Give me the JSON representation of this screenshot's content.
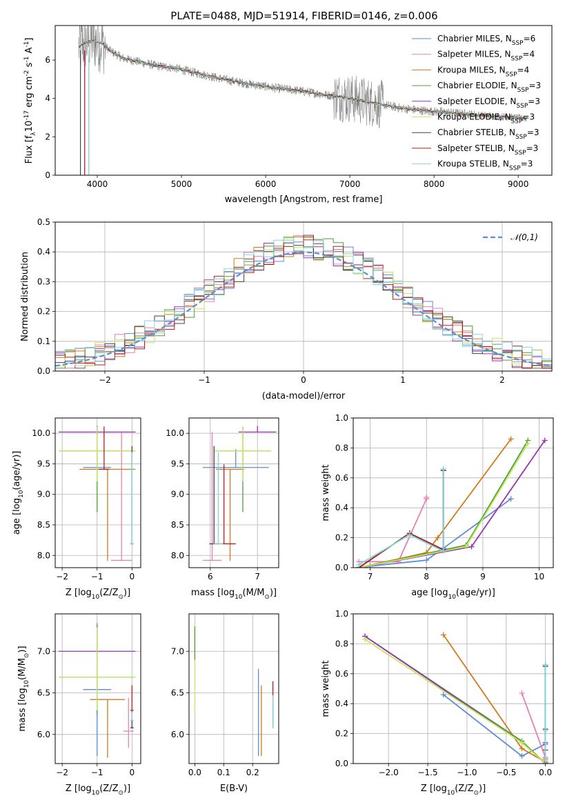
{
  "chart_data": [
    {
      "id": "spectrum",
      "type": "line",
      "title": "PLATE=0488, MJD=51914, FIBERID=0146, z=0.006",
      "xlabel": "wavelength [Angstrom, rest frame]",
      "ylabel": "Flux [f_λ10^-17 erg cm^-2 s^-1 A^-1]",
      "xlim": [
        3500,
        9400
      ],
      "ylim": [
        0,
        7.8
      ],
      "xticks": [
        4000,
        5000,
        6000,
        7000,
        8000,
        9000
      ],
      "yticks": [
        0,
        2,
        4,
        6
      ],
      "legend_position": "top-right",
      "legend": [
        {
          "label": "Chabrier MILES, N_SSP=6",
          "color": "#5b8bd9"
        },
        {
          "label": "Salpeter MILES, N_SSP=4",
          "color": "#e87fb4"
        },
        {
          "label": "Kroupa MILES, N_SSP=4",
          "color": "#d2791b"
        },
        {
          "label": "Chabrier ELODIE, N_SSP=3",
          "color": "#4f9f3c"
        },
        {
          "label": "Salpeter ELODIE, N_SSP=3",
          "color": "#9a32b4"
        },
        {
          "label": "Kroupa ELODIE, N_SSP=3",
          "color": "#c4e85a"
        },
        {
          "label": "Chabrier STELIB, N_SSP=3",
          "color": "#404040"
        },
        {
          "label": "Salpeter STELIB, N_SSP=3",
          "color": "#b01e1e"
        },
        {
          "label": "Kroupa STELIB, N_SSP=3",
          "color": "#7fd6dc"
        }
      ],
      "data_color": "#808080",
      "continuum": {
        "x": [
          3780,
          3850,
          3950,
          4050,
          4150,
          4300,
          4500,
          4700,
          4900,
          5100,
          5300,
          5500,
          5800,
          6100,
          6400,
          6700,
          7000,
          7300,
          7600,
          7900,
          8200,
          8500,
          8800,
          9100
        ],
        "y": [
          6.7,
          6.9,
          7.0,
          6.9,
          6.5,
          6.1,
          5.9,
          5.7,
          5.6,
          5.4,
          5.2,
          5.0,
          4.75,
          4.55,
          4.4,
          4.2,
          4.0,
          3.75,
          3.5,
          3.35,
          3.25,
          3.15,
          3.05,
          2.95
        ]
      }
    },
    {
      "id": "residuals",
      "type": "histogram",
      "xlabel": "(data-model)/error",
      "ylabel": "Normed distribution",
      "xlim": [
        -2.5,
        2.5
      ],
      "ylim": [
        0,
        0.5
      ],
      "xticks": [
        -2,
        -1,
        0,
        1,
        2
      ],
      "yticks": [
        0.0,
        0.1,
        0.2,
        0.3,
        0.4,
        0.5
      ],
      "reference_label": "𝒩(0,1)",
      "reference_color": "#5b8bd9",
      "bin_width": 0.1,
      "bin_start": -2.5
    },
    {
      "id": "age-vs-z",
      "type": "scatter",
      "xlabel": "Z [log10(Z/Z⊙)]",
      "ylabel": "age  [log10(age/yr)]",
      "xlim": [
        -2.2,
        0.25
      ],
      "ylim": [
        7.8,
        10.25
      ],
      "xticks": [
        -2,
        -1,
        0
      ],
      "yticks": [
        8.0,
        8.5,
        9.0,
        9.5,
        10.0
      ],
      "points": [
        {
          "x": -1.0,
          "y": 9.44,
          "xerr": 0.4,
          "yerr_lo": 0.0,
          "yerr_hi": 0.3,
          "color": "#5b8bd9"
        },
        {
          "x": -0.3,
          "y": 7.92,
          "xerr": 0.3,
          "yerr_lo": 0.0,
          "yerr_hi": 2.1,
          "color": "#e87fb4"
        },
        {
          "x": -0.7,
          "y": 9.41,
          "xerr": 0.8,
          "yerr_lo": 1.5,
          "yerr_hi": 0.0,
          "color": "#d2791b"
        },
        {
          "x": -1.0,
          "y": 9.71,
          "xerr": 1.1,
          "yerr_lo": 1.0,
          "yerr_hi": 0.4,
          "color": "#4f9f3c"
        },
        {
          "x": -1.0,
          "y": 10.02,
          "xerr": 1.1,
          "yerr_lo": 0.0,
          "yerr_hi": 0.1,
          "color": "#9a32b4"
        },
        {
          "x": -1.0,
          "y": 9.71,
          "xerr": 1.1,
          "yerr_lo": 0.5,
          "yerr_hi": 0.4,
          "color": "#c4e85a"
        },
        {
          "x": 0.0,
          "y": 8.19,
          "xerr": 0.05,
          "yerr_lo": 0.0,
          "yerr_hi": 1.6,
          "color": "#404040"
        },
        {
          "x": -0.8,
          "y": 9.41,
          "xerr": 0.15,
          "yerr_lo": 0.0,
          "yerr_hi": 0.7,
          "color": "#b01e1e"
        },
        {
          "x": 0.0,
          "y": 8.19,
          "xerr": 0.05,
          "yerr_lo": 0.0,
          "yerr_hi": 1.5,
          "color": "#7fd6dc"
        }
      ]
    },
    {
      "id": "age-vs-mass",
      "type": "scatter",
      "xlabel": "mass [log10(M/M⊙)]",
      "ylabel": "",
      "xlim": [
        5.55,
        7.45
      ],
      "ylim": [
        7.8,
        10.25
      ],
      "xticks": [
        6,
        7
      ],
      "yticks": [
        8.0,
        8.5,
        9.0,
        9.5,
        10.0
      ],
      "points": [
        {
          "x": 6.54,
          "y": 9.44,
          "xerr": 0.7,
          "yerr_lo": 0.0,
          "yerr_hi": 0.3,
          "color": "#5b8bd9"
        },
        {
          "x": 6.04,
          "y": 7.92,
          "xerr": 0.2,
          "yerr_lo": 0.0,
          "yerr_hi": 2.1,
          "color": "#e87fb4"
        },
        {
          "x": 6.42,
          "y": 9.41,
          "xerr": 0.3,
          "yerr_lo": 1.5,
          "yerr_hi": 0.0,
          "color": "#d2791b"
        },
        {
          "x": 6.69,
          "y": 9.71,
          "xerr": 0.6,
          "yerr_lo": 1.0,
          "yerr_hi": 0.4,
          "color": "#4f9f3c"
        },
        {
          "x": 7.0,
          "y": 10.02,
          "xerr": 0.4,
          "yerr_lo": 0.0,
          "yerr_hi": 0.1,
          "color": "#9a32b4"
        },
        {
          "x": 6.69,
          "y": 9.71,
          "xerr": 0.6,
          "yerr_lo": 0.5,
          "yerr_hi": 0.4,
          "color": "#c4e85a"
        },
        {
          "x": 6.08,
          "y": 8.19,
          "xerr": 0.1,
          "yerr_lo": 0.0,
          "yerr_hi": 1.6,
          "color": "#404040"
        },
        {
          "x": 6.29,
          "y": 8.19,
          "xerr": 0.25,
          "yerr_lo": 0.0,
          "yerr_hi": 1.3,
          "color": "#b01e1e"
        },
        {
          "x": 6.17,
          "y": 8.19,
          "xerr": 0.1,
          "yerr_lo": 0.0,
          "yerr_hi": 1.5,
          "color": "#7fd6dc"
        }
      ]
    },
    {
      "id": "mass-weight-vs-age",
      "type": "line",
      "xlabel": "age  [log10(age/yr)]",
      "ylabel": "mass weight",
      "xlim": [
        6.7,
        10.25
      ],
      "ylim": [
        0,
        1.0
      ],
      "xticks": [
        7,
        8,
        9,
        10
      ],
      "yticks": [
        0.0,
        0.2,
        0.4,
        0.6,
        0.8,
        1.0
      ],
      "series": [
        {
          "color": "#5b8bd9",
          "x": [
            6.8,
            7.0,
            8.0,
            8.3,
            9.5
          ],
          "y": [
            0.0,
            0.01,
            0.05,
            0.13,
            0.46
          ]
        },
        {
          "color": "#e87fb4",
          "x": [
            6.8,
            7.5,
            8.0,
            8.0
          ],
          "y": [
            0.04,
            0.04,
            0.46,
            0.47
          ]
        },
        {
          "color": "#d2791b",
          "x": [
            6.8,
            8.0,
            8.2,
            9.5
          ],
          "y": [
            0.0,
            0.1,
            0.2,
            0.86
          ]
        },
        {
          "color": "#4f9f3c",
          "x": [
            6.8,
            8.7,
            9.8
          ],
          "y": [
            0.0,
            0.15,
            0.85
          ]
        },
        {
          "color": "#9a32b4",
          "x": [
            6.8,
            8.8,
            10.1
          ],
          "y": [
            0.0,
            0.14,
            0.85
          ]
        },
        {
          "color": "#c4e85a",
          "x": [
            6.8,
            8.7,
            9.8
          ],
          "y": [
            0.0,
            0.14,
            0.83
          ]
        },
        {
          "color": "#404040",
          "x": [
            6.8,
            7.7,
            8.3,
            8.3
          ],
          "y": [
            0.0,
            0.23,
            0.12,
            0.65
          ]
        },
        {
          "color": "#b01e1e",
          "x": [
            6.8,
            7.7,
            8.3,
            8.3
          ],
          "y": [
            0.0,
            0.23,
            0.12,
            0.65
          ]
        },
        {
          "color": "#7fd6dc",
          "x": [
            6.8,
            7.7,
            8.3,
            8.3
          ],
          "y": [
            0.02,
            0.22,
            0.11,
            0.66
          ]
        }
      ]
    },
    {
      "id": "mass-vs-z",
      "type": "scatter",
      "xlabel": "Z [log10(Z/Z⊙)]",
      "ylabel": "mass [log10(M/M⊙)]",
      "xlim": [
        -2.2,
        0.25
      ],
      "ylim": [
        5.65,
        7.45
      ],
      "xticks": [
        -2,
        -1,
        0
      ],
      "yticks": [
        6.0,
        6.5,
        7.0
      ],
      "points": [
        {
          "x": -1.0,
          "y": 6.54,
          "xerr": 0.4,
          "yerr_lo": 0.8,
          "yerr_hi": 0.25,
          "color": "#5b8bd9"
        },
        {
          "x": -0.1,
          "y": 6.04,
          "xerr": 0.15,
          "yerr_lo": 0.2,
          "yerr_hi": 0.4,
          "color": "#e87fb4"
        },
        {
          "x": -0.7,
          "y": 6.42,
          "xerr": 0.5,
          "yerr_lo": 0.7,
          "yerr_hi": 0.0,
          "color": "#d2791b"
        },
        {
          "x": -1.0,
          "y": 6.69,
          "xerr": 1.1,
          "yerr_lo": 0.45,
          "yerr_hi": 0.65,
          "color": "#4f9f3c"
        },
        {
          "x": -1.0,
          "y": 7.0,
          "xerr": 1.1,
          "yerr_lo": 0.1,
          "yerr_hi": 0.3,
          "color": "#9a32b4"
        },
        {
          "x": -1.0,
          "y": 6.69,
          "xerr": 1.1,
          "yerr_lo": 0.4,
          "yerr_hi": 0.6,
          "color": "#c4e85a"
        },
        {
          "x": 0.0,
          "y": 6.08,
          "xerr": 0.05,
          "yerr_lo": 0.0,
          "yerr_hi": 0.2,
          "color": "#404040"
        },
        {
          "x": 0.0,
          "y": 6.29,
          "xerr": 0.05,
          "yerr_lo": 0.0,
          "yerr_hi": 0.3,
          "color": "#b01e1e"
        },
        {
          "x": 0.0,
          "y": 6.17,
          "xerr": 0.05,
          "yerr_lo": 0.0,
          "yerr_hi": 0.1,
          "color": "#7fd6dc"
        }
      ]
    },
    {
      "id": "mass-vs-ebv",
      "type": "scatter",
      "xlabel": "E(B-V)",
      "ylabel": "",
      "xlim": [
        -0.02,
        0.29
      ],
      "ylim": [
        5.65,
        7.45
      ],
      "xticks": [
        0.0,
        0.1,
        0.2
      ],
      "yticks": [
        6.0,
        6.5,
        7.0
      ],
      "points": [
        {
          "x": 0.22,
          "y": 6.54,
          "yerr_lo": 0.8,
          "yerr_hi": 0.25,
          "color": "#5b8bd9"
        },
        {
          "x": 0.23,
          "y": 6.04,
          "yerr_lo": 0.3,
          "yerr_hi": 0.55,
          "color": "#d2791b"
        },
        {
          "x": 0.0,
          "y": 6.69,
          "yerr_lo": 0.45,
          "yerr_hi": 0.65,
          "color": "#c4e85a"
        },
        {
          "x": 0.0,
          "y": 7.0,
          "yerr_lo": 0.1,
          "yerr_hi": 0.3,
          "color": "#4f9f3c"
        },
        {
          "x": 0.27,
          "y": 6.29,
          "yerr_lo": 0.2,
          "yerr_hi": 0.35,
          "color": "#b01e1e"
        },
        {
          "x": 0.27,
          "y": 6.17,
          "yerr_lo": 0.1,
          "yerr_hi": 0.3,
          "color": "#7fd6dc"
        }
      ]
    },
    {
      "id": "mass-weight-vs-z",
      "type": "line",
      "xlabel": "Z [log10(Z/Z⊙)]",
      "ylabel": "mass weight",
      "xlim": [
        -2.45,
        0.1
      ],
      "ylim": [
        0,
        1.0
      ],
      "xticks": [
        -2.0,
        -1.5,
        -1.0,
        -0.5,
        0.0
      ],
      "yticks": [
        0.0,
        0.2,
        0.4,
        0.6,
        0.8,
        1.0
      ],
      "series": [
        {
          "color": "#5b8bd9",
          "x": [
            -1.3,
            -0.3,
            0.0,
            0.0
          ],
          "y": [
            0.46,
            0.05,
            0.13,
            0.66
          ]
        },
        {
          "color": "#e87fb4",
          "x": [
            -0.3,
            0.0,
            0.0
          ],
          "y": [
            0.47,
            0.04,
            0.04
          ]
        },
        {
          "color": "#d2791b",
          "x": [
            -1.3,
            -0.3,
            0.0,
            0.0
          ],
          "y": [
            0.86,
            0.1,
            0.01,
            0.03
          ]
        },
        {
          "color": "#4f9f3c",
          "x": [
            -2.3,
            -0.3,
            0.0
          ],
          "y": [
            0.85,
            0.15,
            0.0
          ]
        },
        {
          "color": "#9a32b4",
          "x": [
            -2.3,
            -0.3,
            0.0,
            0.0
          ],
          "y": [
            0.85,
            0.14,
            0.0,
            0.14
          ]
        },
        {
          "color": "#c4e85a",
          "x": [
            -2.3,
            -0.3,
            0.0
          ],
          "y": [
            0.83,
            0.14,
            0.0
          ]
        },
        {
          "color": "#404040",
          "x": [
            0.0,
            0.0,
            0.0
          ],
          "y": [
            0.23,
            0.65,
            0.0
          ]
        },
        {
          "color": "#b01e1e",
          "x": [
            0.0,
            0.0
          ],
          "y": [
            0.09,
            0.0
          ]
        },
        {
          "color": "#7fd6dc",
          "x": [
            0.0,
            0.0,
            0.0
          ],
          "y": [
            0.22,
            0.66,
            0.02
          ]
        }
      ]
    }
  ]
}
